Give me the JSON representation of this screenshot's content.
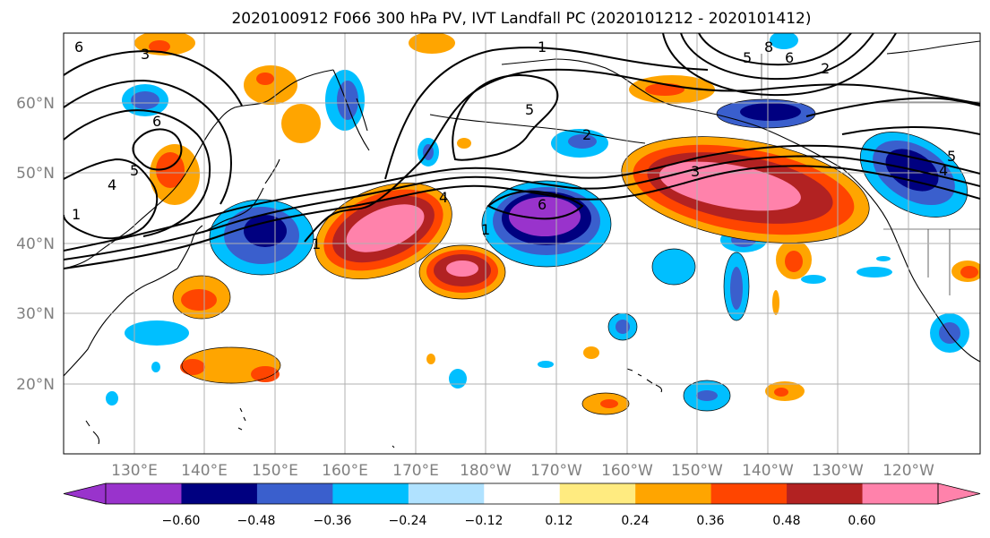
{
  "title": "2020100912 F066 300 hPa PV, IVT Landfall PC (2020101212 - 2020101412)",
  "lat_labels": [
    "60°N",
    "50°N",
    "40°N",
    "30°N",
    "20°N"
  ],
  "lon_labels": [
    "130°E",
    "140°E",
    "150°E",
    "160°E",
    "170°E",
    "180°W",
    "170°W",
    "160°W",
    "150°W",
    "140°W",
    "130°W",
    "120°W"
  ],
  "colorbar": {
    "ticks": [
      "−0.60",
      "−0.48",
      "−0.36",
      "−0.24",
      "−0.12",
      "0.12",
      "0.24",
      "0.36",
      "0.48",
      "0.60"
    ],
    "colors": [
      "#9933cc",
      "#000080",
      "#3a5fcd",
      "#00bfff",
      "#b0e2ff",
      "#ffffff",
      "#ffeb80",
      "#ffa500",
      "#ff4500",
      "#b22222",
      "#ff82ab"
    ]
  },
  "pv_contour_labels": [
    "6",
    "3",
    "6",
    "5",
    "4",
    "1",
    "1",
    "5",
    "2",
    "6",
    "4",
    "1",
    "3",
    "8",
    "6",
    "5",
    "2",
    "5",
    "4",
    "1"
  ],
  "colors": {
    "gridline": "#b0b0b0",
    "coast": "#000000",
    "contour": "#000000",
    "label": "#808080"
  }
}
